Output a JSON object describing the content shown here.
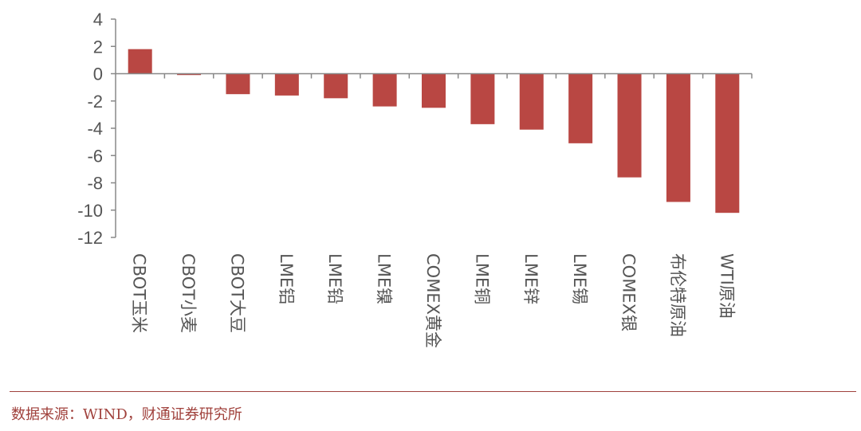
{
  "chart_data": {
    "type": "bar",
    "categories": [
      "CBOT玉米",
      "CBOT小麦",
      "CBOT大豆",
      "LME铝",
      "LME铅",
      "LME镍",
      "COMEX黄金",
      "LME铜",
      "LME锌",
      "LME锡",
      "COMEX银",
      "布伦特原油",
      "WTI原油"
    ],
    "values": [
      1.8,
      -0.1,
      -1.5,
      -1.6,
      -1.8,
      -2.4,
      -2.5,
      -3.7,
      -4.1,
      -5.1,
      -7.6,
      -9.4,
      -10.2
    ],
    "ylim": [
      -12,
      4
    ],
    "yticks": [
      4,
      2,
      0,
      -2,
      -4,
      -6,
      -8,
      -10,
      -12
    ],
    "bar_color": "#b94743",
    "axis_color": "#888888",
    "grid": false,
    "legend": "none",
    "title": "",
    "xlabel": "",
    "ylabel": ""
  },
  "footer": {
    "source": "数据来源：WIND，财通证券研究所",
    "accent_color": "#a0413c"
  }
}
